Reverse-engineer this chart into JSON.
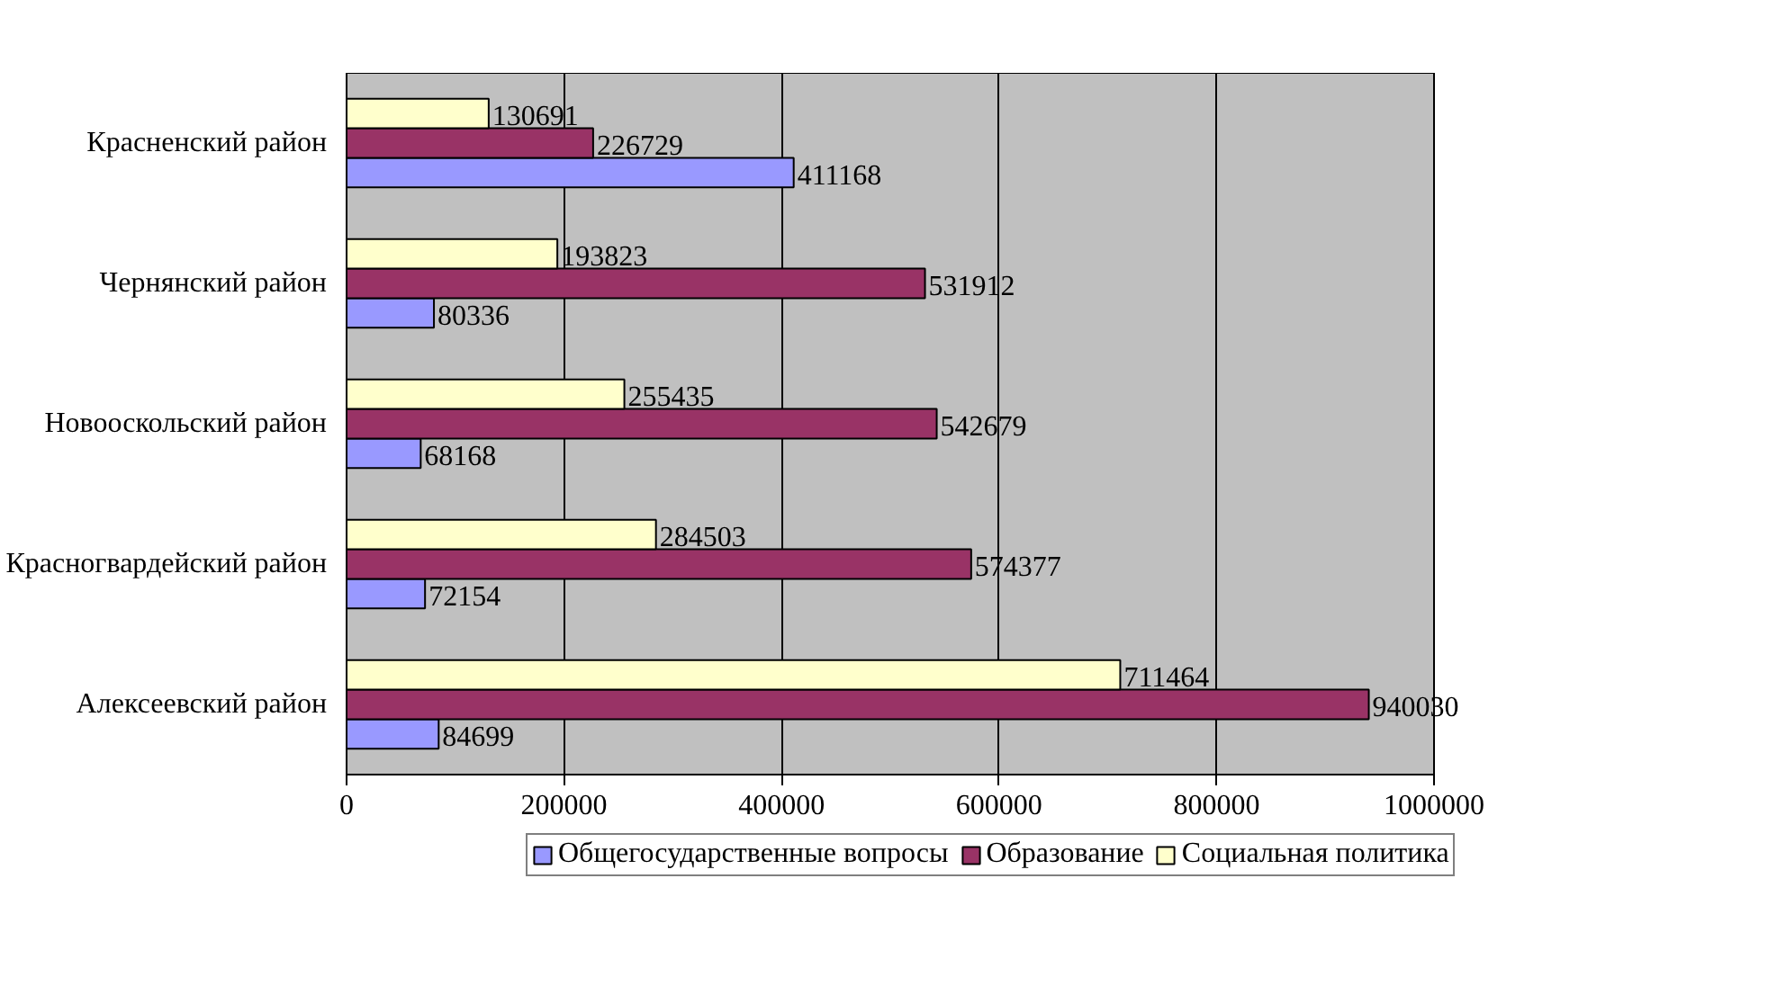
{
  "chart_data": {
    "type": "bar",
    "orientation": "horizontal",
    "categories": [
      "Красненский район",
      "Чернянский район",
      "Новооскольский район",
      "Красногвардейский район",
      "Алексеевский район"
    ],
    "series": [
      {
        "name": "Общегосударственные вопросы",
        "color": "#9999ff",
        "values": [
          411168,
          80336,
          68168,
          72154,
          84699
        ]
      },
      {
        "name": "Образование",
        "color": "#993366",
        "values": [
          226729,
          531912,
          542679,
          574377,
          940030
        ]
      },
      {
        "name": "Социальная политика",
        "color": "#ffffcc",
        "values": [
          130691,
          193823,
          255435,
          284503,
          711464
        ]
      }
    ],
    "xlim": [
      0,
      1000000
    ],
    "xticks": [
      0,
      200000,
      400000,
      600000,
      800000,
      1000000
    ],
    "grid": "x",
    "legend": "bottom",
    "data_labels": true
  }
}
